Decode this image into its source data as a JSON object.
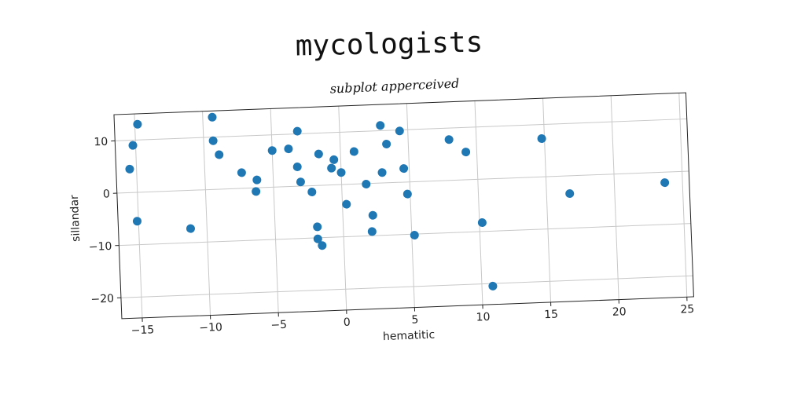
{
  "figure": {
    "title": "mycologists"
  },
  "chart_data": {
    "type": "scatter",
    "title": "subplot apperceived",
    "xlabel": "hematitic",
    "ylabel": "sillandar",
    "xlim": [
      -16.5,
      25.5
    ],
    "ylim": [
      -24,
      15
    ],
    "xticks": [
      -15,
      -10,
      -5,
      0,
      5,
      10,
      15,
      20,
      25
    ],
    "yticks": [
      -20,
      -10,
      0,
      10
    ],
    "grid": true,
    "marker_color": "#1f77b4",
    "points": [
      {
        "x": -14.8,
        "y": 13.0
      },
      {
        "x": -15.2,
        "y": 9.0
      },
      {
        "x": -15.5,
        "y": 4.5
      },
      {
        "x": -15.1,
        "y": -5.5
      },
      {
        "x": -11.2,
        "y": -7.3
      },
      {
        "x": -9.3,
        "y": 13.8
      },
      {
        "x": -9.3,
        "y": 9.3
      },
      {
        "x": -8.9,
        "y": 6.6
      },
      {
        "x": -7.3,
        "y": 3.0
      },
      {
        "x": -6.2,
        "y": 1.5
      },
      {
        "x": -6.3,
        "y": -0.7
      },
      {
        "x": -5.0,
        "y": 7.0
      },
      {
        "x": -3.8,
        "y": 7.2
      },
      {
        "x": -3.1,
        "y": 10.5
      },
      {
        "x": -3.2,
        "y": 3.7
      },
      {
        "x": -3.0,
        "y": 0.8
      },
      {
        "x": -2.2,
        "y": -1.2
      },
      {
        "x": -1.6,
        "y": 6.0
      },
      {
        "x": -0.7,
        "y": 3.2
      },
      {
        "x": -0.5,
        "y": 4.8
      },
      {
        "x": 0.0,
        "y": 2.3
      },
      {
        "x": 0.3,
        "y": -3.8
      },
      {
        "x": 1.0,
        "y": 6.2
      },
      {
        "x": 1.8,
        "y": -0.1
      },
      {
        "x": 2.2,
        "y": -6.1
      },
      {
        "x": 2.1,
        "y": -9.2
      },
      {
        "x": 3.0,
        "y": 2.0
      },
      {
        "x": 3.0,
        "y": 11.0
      },
      {
        "x": 3.4,
        "y": 7.4
      },
      {
        "x": 4.4,
        "y": 9.8
      },
      {
        "x": 4.6,
        "y": 2.6
      },
      {
        "x": 4.8,
        "y": -2.3
      },
      {
        "x": 5.2,
        "y": -10.2
      },
      {
        "x": -1.9,
        "y": -7.9
      },
      {
        "x": -1.9,
        "y": -10.2
      },
      {
        "x": -1.6,
        "y": -11.5
      },
      {
        "x": 8.0,
        "y": 7.8
      },
      {
        "x": 9.2,
        "y": 5.3
      },
      {
        "x": 10.2,
        "y": -8.3
      },
      {
        "x": 10.8,
        "y": -20.5
      },
      {
        "x": 14.8,
        "y": 7.3
      },
      {
        "x": 16.7,
        "y": -3.4
      },
      {
        "x": 23.7,
        "y": -2.0
      }
    ]
  }
}
